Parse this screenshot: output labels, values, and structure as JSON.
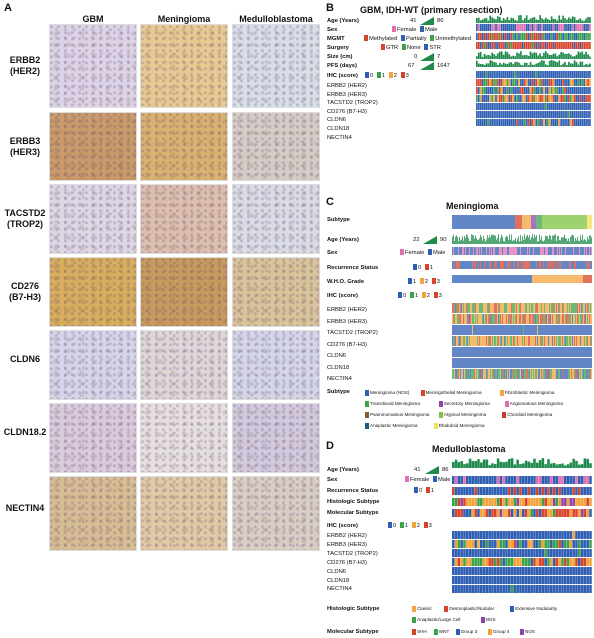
{
  "panelA": {
    "letter": "A",
    "columns": [
      "GBM",
      "Meningioma",
      "Medulloblastoma"
    ],
    "rows": [
      {
        "name": "ERBB2",
        "alias": "(HER2)",
        "stain": [
          "#ddd3e6",
          "#e9c992",
          "#d7dee8"
        ]
      },
      {
        "name": "ERBB3",
        "alias": "(HER3)",
        "stain": [
          "#c99a6a",
          "#d9b171",
          "#d6ccc6"
        ]
      },
      {
        "name": "TACSTD2",
        "alias": "(TROP2)",
        "stain": [
          "#ddd6e4",
          "#dcbfae",
          "#d9dbe5"
        ]
      },
      {
        "name": "CD276",
        "alias": "(B7-H3)",
        "stain": [
          "#d7ad5e",
          "#c99a5e",
          "#d9c39b"
        ]
      },
      {
        "name": "CLDN6",
        "alias": "",
        "stain": [
          "#d6d4e8",
          "#dfd6d9",
          "#d4d6e8"
        ]
      },
      {
        "name": "CLDN18.2",
        "alias": "",
        "stain": [
          "#d9cadc",
          "#e6dfe0",
          "#d2c9dc"
        ]
      },
      {
        "name": "NECTIN4",
        "alias": "",
        "stain": [
          "#d7bd93",
          "#e1c9a6",
          "#d8cec4"
        ]
      }
    ]
  },
  "panelB": {
    "letter": "B",
    "title": "GBM, IDH-WT (primary resection)",
    "age": {
      "label": "Age (Years)",
      "min": "41",
      "max": "86"
    },
    "sex": {
      "label": "Sex",
      "female": "Female",
      "male": "Male"
    },
    "mgmt": {
      "label": "MGMT",
      "items": [
        "Methylated",
        "Partially",
        "Unmethylated"
      ]
    },
    "surgery": {
      "label": "Surgery",
      "items": [
        "GTR",
        "None",
        "STR"
      ]
    },
    "size": {
      "label": "Size (cm)",
      "min": "0",
      "max": "7"
    },
    "pfs": {
      "label": "PFS (days)",
      "min": "67",
      "max": "1647"
    },
    "ihc": {
      "label": "IHC (score)",
      "scores": [
        "0",
        "1",
        "2",
        "3"
      ]
    },
    "markers": [
      "ERBB2 (HER2)",
      "ERBB3 (HER3)",
      "TACSTD2 (TROP2)",
      "CD276 (B7-H3)",
      "CLDN6",
      "CLDN18",
      "NECTIN4"
    ]
  },
  "panelC": {
    "letter": "C",
    "title": "Meningioma",
    "subtype_label": "Subtype",
    "age": {
      "label": "Age (Years)",
      "min": "22",
      "max": "90"
    },
    "sex": {
      "label": "Sex",
      "female": "Female",
      "male": "Male"
    },
    "recurrence": {
      "label": "Recurrence Status",
      "items": [
        "0",
        "1"
      ]
    },
    "who": {
      "label": "W.H.O. Grade",
      "items": [
        "1",
        "2",
        "3"
      ]
    },
    "ihc": {
      "label": "IHC (score)",
      "scores": [
        "0",
        "1",
        "2",
        "3"
      ]
    },
    "markers": [
      "ERBB2 (HER2)",
      "ERBB3 (HER3)",
      "TACSTD2 (TROP2)",
      "CD276 (B7-H3)",
      "CLDN6",
      "CLDN18",
      "NECTIN4"
    ],
    "legend_label": "Subtype",
    "legend": [
      {
        "name": "Meningioma (NOS)",
        "color": "#2f5fb3"
      },
      {
        "name": "Meningothelial Meningioma",
        "color": "#d9432b"
      },
      {
        "name": "Fibroblastic Meningioma",
        "color": "#f2a33a"
      },
      {
        "name": "Transitional Meningioma",
        "color": "#3aa34a"
      },
      {
        "name": "Secretory Meningioma",
        "color": "#8e44ad"
      },
      {
        "name": "Angiomatous Meningioma",
        "color": "#e06fb2"
      },
      {
        "name": "Psammomatous Meningioma",
        "color": "#8b5a2b"
      },
      {
        "name": "Atypical Meningioma",
        "color": "#7fc241"
      },
      {
        "name": "Chordoid Meningioma",
        "color": "#c0392b"
      },
      {
        "name": "Anaplastic Meningioma",
        "color": "#17627a"
      },
      {
        "name": "Rhabdoid Meningioma",
        "color": "#f1e05a"
      }
    ]
  },
  "panelD": {
    "letter": "D",
    "title": "Medulloblastoma",
    "age": {
      "label": "Age (Years)",
      "min": "41",
      "max": "86"
    },
    "sex": {
      "label": "Sex",
      "female": "Female",
      "male": "Male"
    },
    "recurrence": {
      "label": "Recurrence Status",
      "items": [
        "0",
        "1"
      ]
    },
    "histologic_label": "Histologic Subtype",
    "molecular_label": "Molecular Subtype",
    "ihc": {
      "label": "IHC (score)",
      "scores": [
        "0",
        "1",
        "2",
        "3"
      ]
    },
    "markers": [
      "ERBB2 (HER2)",
      "ERBB3 (HER3)",
      "TACSTD2 (TROP2)",
      "CD276 (B7-H3)",
      "CLDN6",
      "CLDN18",
      "NECTIN4"
    ],
    "hist_legend_label": "Histologic Subtype",
    "hist_legend": [
      {
        "name": "Classic",
        "color": "#f2a33a"
      },
      {
        "name": "Desmoplastic/Nodular",
        "color": "#d9432b"
      },
      {
        "name": "Extensive Nodularity",
        "color": "#2f5fb3"
      },
      {
        "name": "Anaplastic/Large Cell",
        "color": "#3aa34a"
      },
      {
        "name": "NOS",
        "color": "#8e44ad"
      }
    ],
    "mol_legend_label": "Molecular Subtype",
    "mol_legend": [
      {
        "name": "SHH",
        "color": "#d9432b"
      },
      {
        "name": "WNT",
        "color": "#3aa34a"
      },
      {
        "name": "Group 3",
        "color": "#2f5fb3"
      },
      {
        "name": "Group 4",
        "color": "#f2a33a"
      },
      {
        "name": "NOS",
        "color": "#8e44ad"
      }
    ]
  },
  "colors": {
    "female": "#e06fb2",
    "male": "#2f5fb3",
    "score0": "#2f5fb3",
    "score1": "#3aa34a",
    "score2": "#f2a33a",
    "score3": "#d9432b",
    "bar": "#1f8a4c"
  }
}
